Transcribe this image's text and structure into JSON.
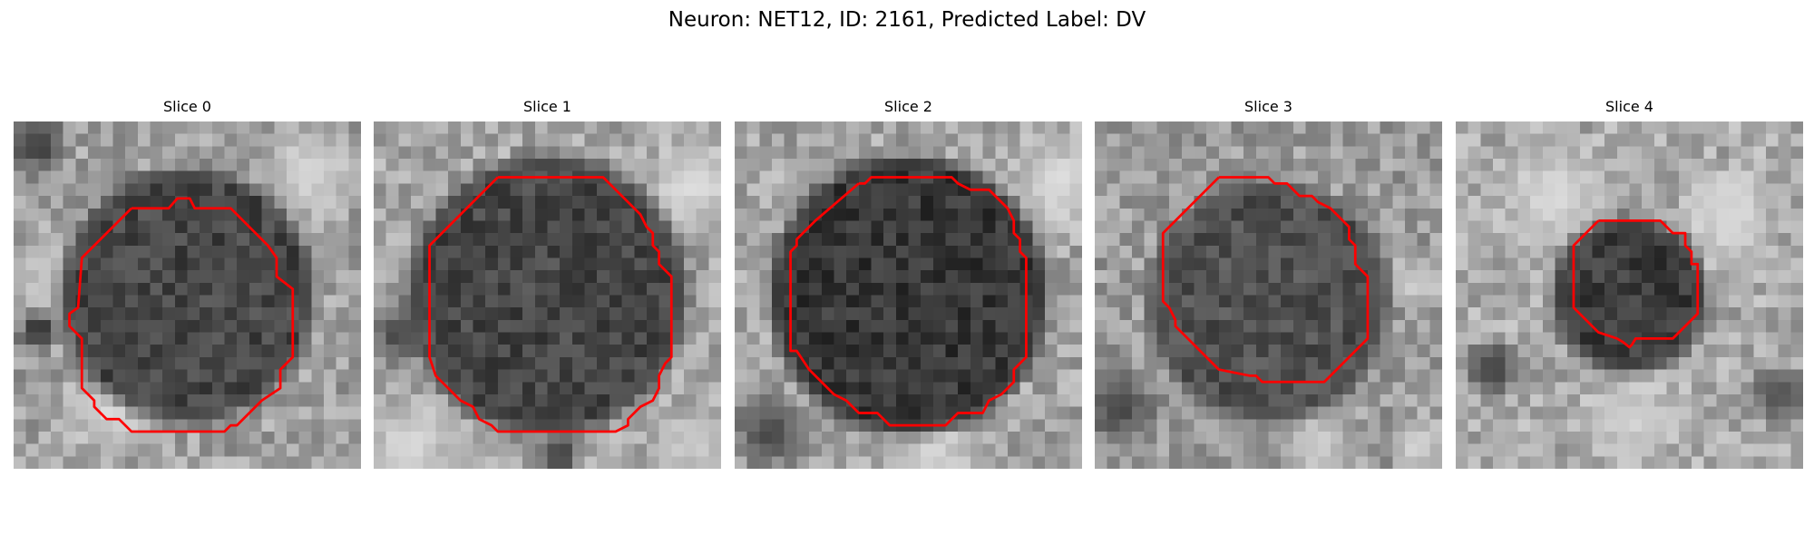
{
  "figure": {
    "title": "Neuron: NET12, ID: 2161, Predicted Label: DV"
  },
  "panels": [
    {
      "title": "Slice 0",
      "image": {
        "grid_size": 28,
        "seed": 11,
        "dark_blob": {
          "cx": 14.0,
          "cy": 14.0,
          "r": 9.5,
          "level": 70
        },
        "bright_regions": [
          {
            "cx": 8,
            "cy": 23,
            "r": 5,
            "level": 225
          },
          {
            "cx": 24,
            "cy": 4,
            "r": 5,
            "level": 220
          },
          {
            "cx": 3,
            "cy": 12,
            "r": 4,
            "level": 210
          },
          {
            "cx": 2,
            "cy": 2,
            "r": 3,
            "level": 40
          },
          {
            "cx": 2,
            "cy": 17,
            "r": 2,
            "level": 20
          }
        ],
        "background_level": 160
      },
      "contour": [
        [
          9.5,
          7.0
        ],
        [
          12.5,
          7.0
        ],
        [
          13.2,
          6.2
        ],
        [
          14.2,
          6.2
        ],
        [
          14.6,
          7.0
        ],
        [
          17.5,
          7.0
        ],
        [
          20.5,
          10.0
        ],
        [
          21.2,
          11.0
        ],
        [
          21.2,
          12.5
        ],
        [
          22.5,
          13.5
        ],
        [
          22.5,
          19.0
        ],
        [
          21.5,
          20.0
        ],
        [
          21.5,
          21.5
        ],
        [
          20.0,
          22.5
        ],
        [
          18.0,
          24.5
        ],
        [
          17.5,
          24.5
        ],
        [
          17.0,
          25.0
        ],
        [
          9.5,
          25.0
        ],
        [
          8.5,
          24.0
        ],
        [
          7.5,
          24.0
        ],
        [
          6.5,
          23.0
        ],
        [
          6.5,
          22.5
        ],
        [
          5.5,
          21.5
        ],
        [
          5.5,
          17.5
        ],
        [
          4.5,
          16.5
        ],
        [
          4.5,
          15.5
        ],
        [
          5.2,
          15.0
        ],
        [
          5.5,
          11.0
        ],
        [
          9.5,
          7.0
        ]
      ]
    },
    {
      "title": "Slice 1",
      "image": {
        "grid_size": 28,
        "seed": 23,
        "dark_blob": {
          "cx": 14.0,
          "cy": 14.0,
          "r": 10.5,
          "level": 70
        },
        "bright_regions": [
          {
            "cx": 26,
            "cy": 5,
            "r": 5,
            "level": 225
          },
          {
            "cx": 3,
            "cy": 26,
            "r": 5,
            "level": 220
          },
          {
            "cx": 26,
            "cy": 26,
            "r": 4,
            "level": 210
          },
          {
            "cx": 2,
            "cy": 17,
            "r": 3,
            "level": 50
          },
          {
            "cx": 15,
            "cy": 27,
            "r": 2,
            "level": 40
          }
        ],
        "background_level": 165
      },
      "contour": [
        [
          10.0,
          4.5
        ],
        [
          18.5,
          4.5
        ],
        [
          21.5,
          7.5
        ],
        [
          22.0,
          8.5
        ],
        [
          22.5,
          9.0
        ],
        [
          22.5,
          10.0
        ],
        [
          23.0,
          10.5
        ],
        [
          23.0,
          11.5
        ],
        [
          24.0,
          12.5
        ],
        [
          24.0,
          19.0
        ],
        [
          23.5,
          19.5
        ],
        [
          23.0,
          20.5
        ],
        [
          23.0,
          21.5
        ],
        [
          22.5,
          22.5
        ],
        [
          21.5,
          23.0
        ],
        [
          20.5,
          24.0
        ],
        [
          20.5,
          24.5
        ],
        [
          19.5,
          25.0
        ],
        [
          10.0,
          25.0
        ],
        [
          9.5,
          24.5
        ],
        [
          8.5,
          24.0
        ],
        [
          8.0,
          23.0
        ],
        [
          7.0,
          22.5
        ],
        [
          6.0,
          21.5
        ],
        [
          5.0,
          20.5
        ],
        [
          4.5,
          19.0
        ],
        [
          4.5,
          10.0
        ],
        [
          10.0,
          4.5
        ]
      ]
    },
    {
      "title": "Slice 2",
      "image": {
        "grid_size": 28,
        "seed": 37,
        "dark_blob": {
          "cx": 14.0,
          "cy": 14.0,
          "r": 10.5,
          "level": 55
        },
        "bright_regions": [
          {
            "cx": 26,
            "cy": 5,
            "r": 5,
            "level": 225
          },
          {
            "cx": 16,
            "cy": 26,
            "r": 4,
            "level": 225
          },
          {
            "cx": 3,
            "cy": 14,
            "r": 3,
            "level": 215
          },
          {
            "cx": 3,
            "cy": 25,
            "r": 4,
            "level": 60
          }
        ],
        "background_level": 165
      },
      "contour": [
        [
          10.0,
          5.0
        ],
        [
          10.5,
          5.0
        ],
        [
          11.0,
          4.5
        ],
        [
          17.5,
          4.5
        ],
        [
          18.0,
          5.0
        ],
        [
          19.0,
          5.5
        ],
        [
          20.5,
          5.5
        ],
        [
          22.0,
          7.0
        ],
        [
          22.5,
          8.0
        ],
        [
          22.5,
          9.0
        ],
        [
          23.0,
          9.5
        ],
        [
          23.0,
          10.5
        ],
        [
          23.5,
          11.0
        ],
        [
          23.5,
          19.0
        ],
        [
          22.5,
          20.0
        ],
        [
          22.5,
          21.0
        ],
        [
          21.5,
          22.0
        ],
        [
          20.5,
          22.5
        ],
        [
          20.0,
          23.5
        ],
        [
          18.0,
          23.5
        ],
        [
          17.0,
          24.5
        ],
        [
          12.5,
          24.5
        ],
        [
          11.5,
          23.5
        ],
        [
          10.0,
          23.5
        ],
        [
          9.0,
          22.5
        ],
        [
          8.0,
          22.0
        ],
        [
          7.0,
          21.0
        ],
        [
          6.0,
          20.0
        ],
        [
          5.0,
          18.5
        ],
        [
          4.5,
          18.5
        ],
        [
          4.5,
          10.5
        ],
        [
          5.0,
          10.0
        ],
        [
          5.0,
          9.5
        ],
        [
          6.5,
          8.0
        ],
        [
          10.0,
          5.0
        ]
      ]
    },
    {
      "title": "Slice 3",
      "image": {
        "grid_size": 28,
        "seed": 53,
        "dark_blob": {
          "cx": 14.0,
          "cy": 14.5,
          "r": 9.0,
          "level": 80
        },
        "bright_regions": [
          {
            "cx": 26,
            "cy": 13,
            "r": 3,
            "level": 215
          },
          {
            "cx": 18,
            "cy": 26,
            "r": 4,
            "level": 210
          },
          {
            "cx": 26,
            "cy": 26,
            "r": 3,
            "level": 220
          },
          {
            "cx": 2,
            "cy": 23,
            "r": 4,
            "level": 60
          }
        ],
        "background_level": 155
      },
      "contour": [
        [
          10.0,
          4.5
        ],
        [
          14.0,
          4.5
        ],
        [
          14.5,
          5.0
        ],
        [
          15.5,
          5.0
        ],
        [
          16.5,
          6.0
        ],
        [
          17.5,
          6.0
        ],
        [
          18.0,
          6.5
        ],
        [
          19.0,
          7.0
        ],
        [
          20.0,
          8.0
        ],
        [
          20.5,
          8.5
        ],
        [
          20.5,
          9.5
        ],
        [
          21.0,
          10.0
        ],
        [
          21.0,
          11.5
        ],
        [
          22.0,
          12.5
        ],
        [
          22.0,
          17.5
        ],
        [
          21.5,
          18.0
        ],
        [
          18.5,
          21.0
        ],
        [
          13.5,
          21.0
        ],
        [
          13.0,
          20.5
        ],
        [
          12.5,
          20.5
        ],
        [
          10.0,
          20.0
        ],
        [
          9.5,
          19.5
        ],
        [
          8.5,
          18.5
        ],
        [
          7.0,
          17.0
        ],
        [
          6.5,
          16.5
        ],
        [
          6.5,
          16.0
        ],
        [
          6.0,
          15.0
        ],
        [
          5.5,
          14.5
        ],
        [
          5.5,
          9.0
        ],
        [
          10.0,
          4.5
        ]
      ]
    },
    {
      "title": "Slice 4",
      "image": {
        "grid_size": 28,
        "seed": 71,
        "dark_blob": {
          "cx": 14.0,
          "cy": 14.0,
          "r": 5.5,
          "level": 60
        },
        "bright_regions": [
          {
            "cx": 8,
            "cy": 6,
            "r": 6,
            "level": 220
          },
          {
            "cx": 22,
            "cy": 8,
            "r": 5,
            "level": 225
          },
          {
            "cx": 14,
            "cy": 24,
            "r": 5,
            "level": 215
          },
          {
            "cx": 3,
            "cy": 20,
            "r": 3,
            "level": 40
          },
          {
            "cx": 26,
            "cy": 22,
            "r": 3,
            "level": 60
          }
        ],
        "background_level": 170
      },
      "contour": [
        [
          11.5,
          8.0
        ],
        [
          16.5,
          8.0
        ],
        [
          17.0,
          8.5
        ],
        [
          17.5,
          9.0
        ],
        [
          18.5,
          9.0
        ],
        [
          18.5,
          10.0
        ],
        [
          19.0,
          10.5
        ],
        [
          19.0,
          11.5
        ],
        [
          19.5,
          11.5
        ],
        [
          19.5,
          15.5
        ],
        [
          17.5,
          17.5
        ],
        [
          14.5,
          17.5
        ],
        [
          14.2,
          18.0
        ],
        [
          14.0,
          18.2
        ],
        [
          13.5,
          17.8
        ],
        [
          13.0,
          17.5
        ],
        [
          11.5,
          17.0
        ],
        [
          9.5,
          15.0
        ],
        [
          9.5,
          10.0
        ],
        [
          11.5,
          8.0
        ]
      ]
    }
  ],
  "colors": {
    "contour": "#ff0000"
  }
}
